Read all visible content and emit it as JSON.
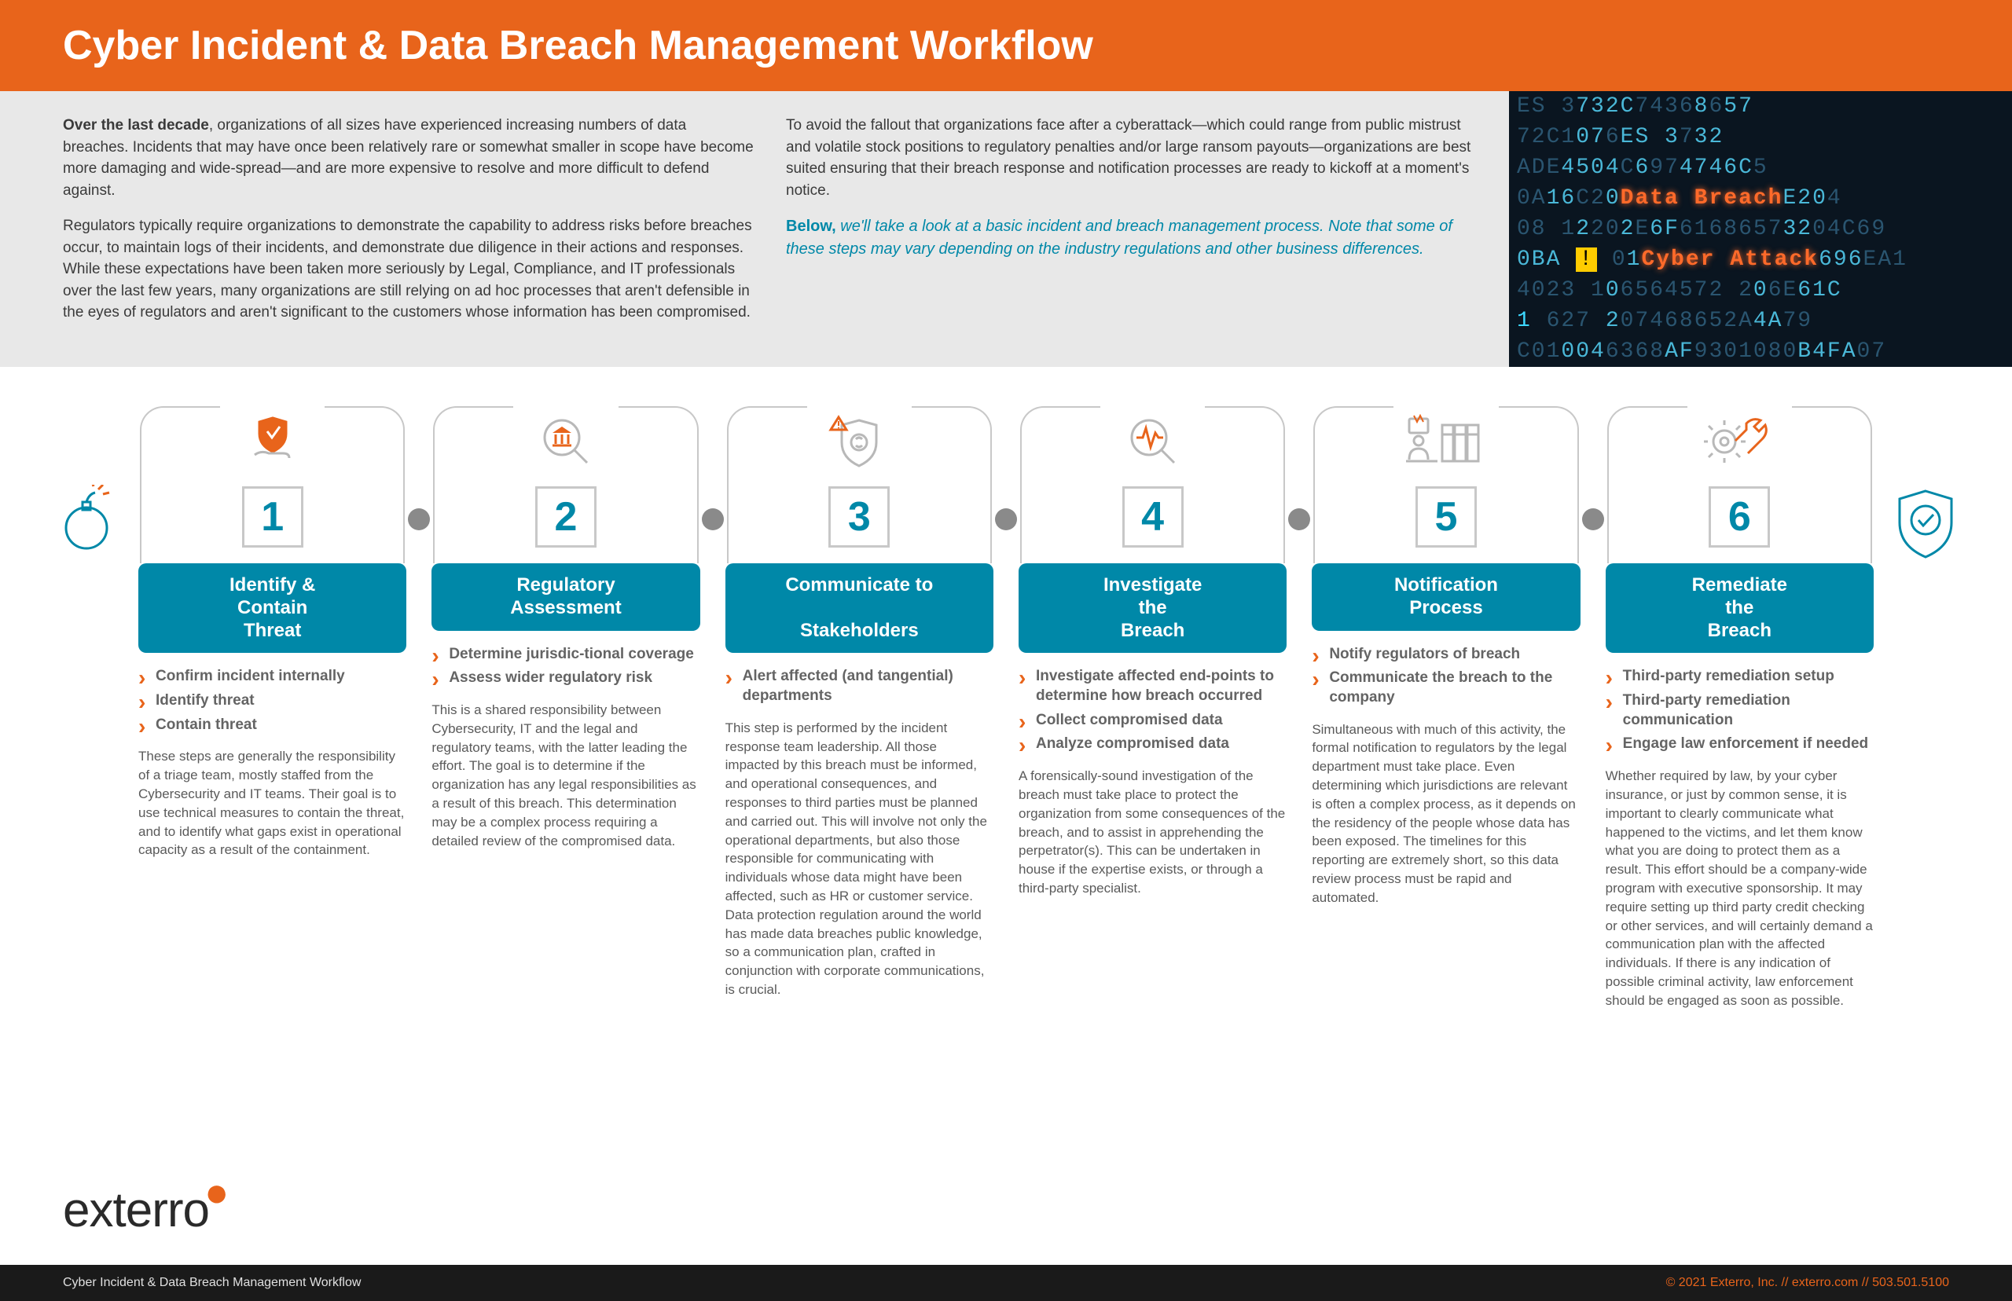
{
  "header": {
    "title": "Cyber Incident & Data Breach Management Workflow"
  },
  "intro": {
    "col1": {
      "p1_lead": "Over the last decade",
      "p1_rest": ", organizations of all sizes have experienced increasing numbers of data breaches. Incidents that may have once been relatively rare or somewhat smaller in scope have become more damaging and wide-spread—and are more expensive to resolve and more difficult to defend against.",
      "p2": "Regulators typically require organizations to demonstrate the capability to address risks before breaches occur, to maintain logs of their incidents, and demonstrate due diligence in their actions and responses. While these expectations have been taken more seriously by Legal, Compliance, and IT professionals over the last few years, many organizations are still relying on ad hoc processes that aren't defensible in the eyes of regulators and aren't significant to the customers whose information has been compromised."
    },
    "col2": {
      "p1": "To avoid the fallout that organizations face after a cyberattack—which could range from public mistrust and volatile stock positions to regulatory penalties and/or large ransom payouts—organizations are best suited ensuring that their breach response and notification processes are ready to kickoff at a moment's notice.",
      "callout_bold": "Below,",
      "callout_rest": " we'll take a look at a basic incident and breach management process. Note that some of these steps may vary depending on the industry regulations and other business differences."
    }
  },
  "hero_lines": [
    {
      "segments": [
        {
          "t": "ES  3",
          "c": "dim"
        },
        {
          "t": "732C",
          "c": "bright"
        },
        {
          "t": "7436",
          "c": "dim"
        },
        {
          "t": "8",
          "c": "bright"
        },
        {
          "t": "6",
          "c": "dim"
        },
        {
          "t": "57",
          "c": "bright"
        }
      ]
    },
    {
      "segments": [
        {
          "t": "72C1",
          "c": "dim"
        },
        {
          "t": "07",
          "c": "bright"
        },
        {
          "t": "6",
          "c": "dim"
        },
        {
          "t": "ES  3",
          "c": "bright"
        },
        {
          "t": "7",
          "c": "dim"
        },
        {
          "t": "32",
          "c": "bright"
        }
      ]
    },
    {
      "segments": [
        {
          "t": "ADE",
          "c": "dim"
        },
        {
          "t": "4504",
          "c": "bright"
        },
        {
          "t": "C",
          "c": "dim"
        },
        {
          "t": "6",
          "c": "bright"
        },
        {
          "t": "97",
          "c": "dim"
        },
        {
          "t": "4746C",
          "c": "bright"
        },
        {
          "t": "5",
          "c": "dim"
        }
      ]
    },
    {
      "segments": [
        {
          "t": "0A",
          "c": "dim"
        },
        {
          "t": "16",
          "c": "bright"
        },
        {
          "t": "C2",
          "c": "dim"
        },
        {
          "t": "0",
          "c": "bright"
        },
        {
          "t": "Data Breach",
          "c": "orange"
        },
        {
          "t": "E20",
          "c": "bright"
        },
        {
          "t": "4",
          "c": "dim"
        }
      ]
    },
    {
      "segments": [
        {
          "t": "08 1",
          "c": "dim"
        },
        {
          "t": "2",
          "c": "bright"
        },
        {
          "t": "20",
          "c": "dim"
        },
        {
          "t": "2",
          "c": "bright"
        },
        {
          "t": "E",
          "c": "dim"
        },
        {
          "t": "6F",
          "c": "bright"
        },
        {
          "t": "6168657",
          "c": "dim"
        },
        {
          "t": "32",
          "c": "bright"
        },
        {
          "t": "04C69",
          "c": "dim"
        }
      ]
    },
    {
      "segments": [
        {
          "t": "0BA ",
          "c": "bright"
        },
        {
          "t": "!",
          "c": "yellow"
        },
        {
          "t": " 0",
          "c": "dim"
        },
        {
          "t": "1",
          "c": "bright"
        },
        {
          "t": "Cyber Attack",
          "c": "orange"
        },
        {
          "t": "696",
          "c": "bright"
        },
        {
          "t": "EA1",
          "c": "dim"
        }
      ]
    },
    {
      "segments": [
        {
          "t": "4023 1",
          "c": "dim"
        },
        {
          "t": "0",
          "c": "bright"
        },
        {
          "t": "6564572 2",
          "c": "dim"
        },
        {
          "t": "0",
          "c": "bright"
        },
        {
          "t": "6E",
          "c": "dim"
        },
        {
          "t": "61C",
          "c": "bright"
        }
      ]
    },
    {
      "segments": [
        {
          "t": "1 ",
          "c": "cyan"
        },
        {
          "t": "627",
          "c": "dim"
        },
        {
          "t": " 2",
          "c": "bright"
        },
        {
          "t": "07468652A",
          "c": "dim"
        },
        {
          "t": "4A",
          "c": "bright"
        },
        {
          "t": "79",
          "c": "dim"
        }
      ]
    },
    {
      "segments": [
        {
          "t": "C01",
          "c": "dim"
        },
        {
          "t": "004",
          "c": "bright"
        },
        {
          "t": "6368",
          "c": "dim"
        },
        {
          "t": "AF",
          "c": "bright"
        },
        {
          "t": "9301080",
          "c": "dim"
        },
        {
          "t": "B4FA",
          "c": "bright"
        },
        {
          "t": "07",
          "c": "dim"
        }
      ]
    }
  ],
  "steps": [
    {
      "num": "1",
      "icon": "shield-hand",
      "title": "Identify & Contain Threat",
      "bullets": [
        "Confirm incident internally",
        "Identify threat",
        "Contain threat"
      ],
      "body": "These steps are generally the responsibility of a triage team, mostly staffed from the Cybersecurity and IT teams. Their goal is to use technical measures to contain the threat, and to identify what gaps exist in operational capacity as a result of the containment."
    },
    {
      "num": "2",
      "icon": "magnify-bank",
      "title": "Regulatory Assessment",
      "bullets": [
        "Determine jurisdic-tional coverage",
        "Assess wider regulatory risk"
      ],
      "body": "This is a shared responsibility between Cybersecurity, IT and the legal and regulatory teams, with the latter leading the effort. The goal is to determine if the organization has any legal responsibilities as a result of this breach. This determination may be a complex process requiring a detailed review of the compromised data."
    },
    {
      "num": "3",
      "icon": "shield-warn",
      "title": "Communicate to Stakeholders",
      "bullets": [
        "Alert affected (and tangential) departments"
      ],
      "body": "This step is performed by the incident response team leadership. All those impacted by this breach must be informed, and operational consequences, and responses to third parties must be planned and carried out. This will involve not only the operational departments, but also those responsible for communicating with individuals whose data might have been affected, such as HR or customer service. Data protection regulation around the world has made data breaches public knowledge, so a communication plan, crafted in conjunction with corporate communications, is crucial."
    },
    {
      "num": "4",
      "icon": "magnify-pulse",
      "title": "Investigate the Breach",
      "bullets": [
        "Investigate affected end-points to determine how breach occurred",
        "Collect compromised data",
        "Analyze compromised data"
      ],
      "body": "A forensically-sound investigation of the breach must take place to protect the organization from some consequences of the breach, and to assist in apprehending the perpetrator(s). This can be undertaken in house if the expertise exists, or through a third-party specialist."
    },
    {
      "num": "5",
      "icon": "person-files",
      "title": "Notification Process",
      "bullets": [
        "Notify regulators of breach",
        "Communicate the breach to the company"
      ],
      "body": "Simultaneous with much of this activity, the formal notification to regulators by the legal department must take place. Even determining which jurisdictions are relevant is often a complex process, as it depends on the residency of the people whose data has been exposed. The timelines for this reporting are extremely short, so this data review process must be rapid and automated."
    },
    {
      "num": "6",
      "icon": "gear-wrench",
      "title": "Remediate the Breach",
      "bullets": [
        "Third-party remediation setup",
        "Third-party remediation communication",
        "Engage law enforcement if needed"
      ],
      "body": "Whether required by law, by your cyber insurance, or just by common sense, it is important to clearly communicate what happened to the victims, and let them know what you are doing to protect them as a result. This effort should be a company-wide program with executive sponsorship. It may require setting up third party credit checking or other services, and will certainly demand a communication plan with the affected individuals. If there is any indication of possible criminal activity, law enforcement should be engaged as soon as possible."
    }
  ],
  "brand": {
    "name": "exterro"
  },
  "footer": {
    "left": "Cyber Incident & Data Breach Management Workflow",
    "right": "© 2021 Exterro, Inc. // exterro.com // 503.501.5100"
  },
  "colors": {
    "orange": "#e8641b",
    "teal": "#0088a8",
    "gray_border": "#c8c8c8",
    "dot": "#8a8a8a",
    "text": "#5a5a5a",
    "bullet_text": "#646464",
    "intro_bg": "#e8e8e8"
  }
}
